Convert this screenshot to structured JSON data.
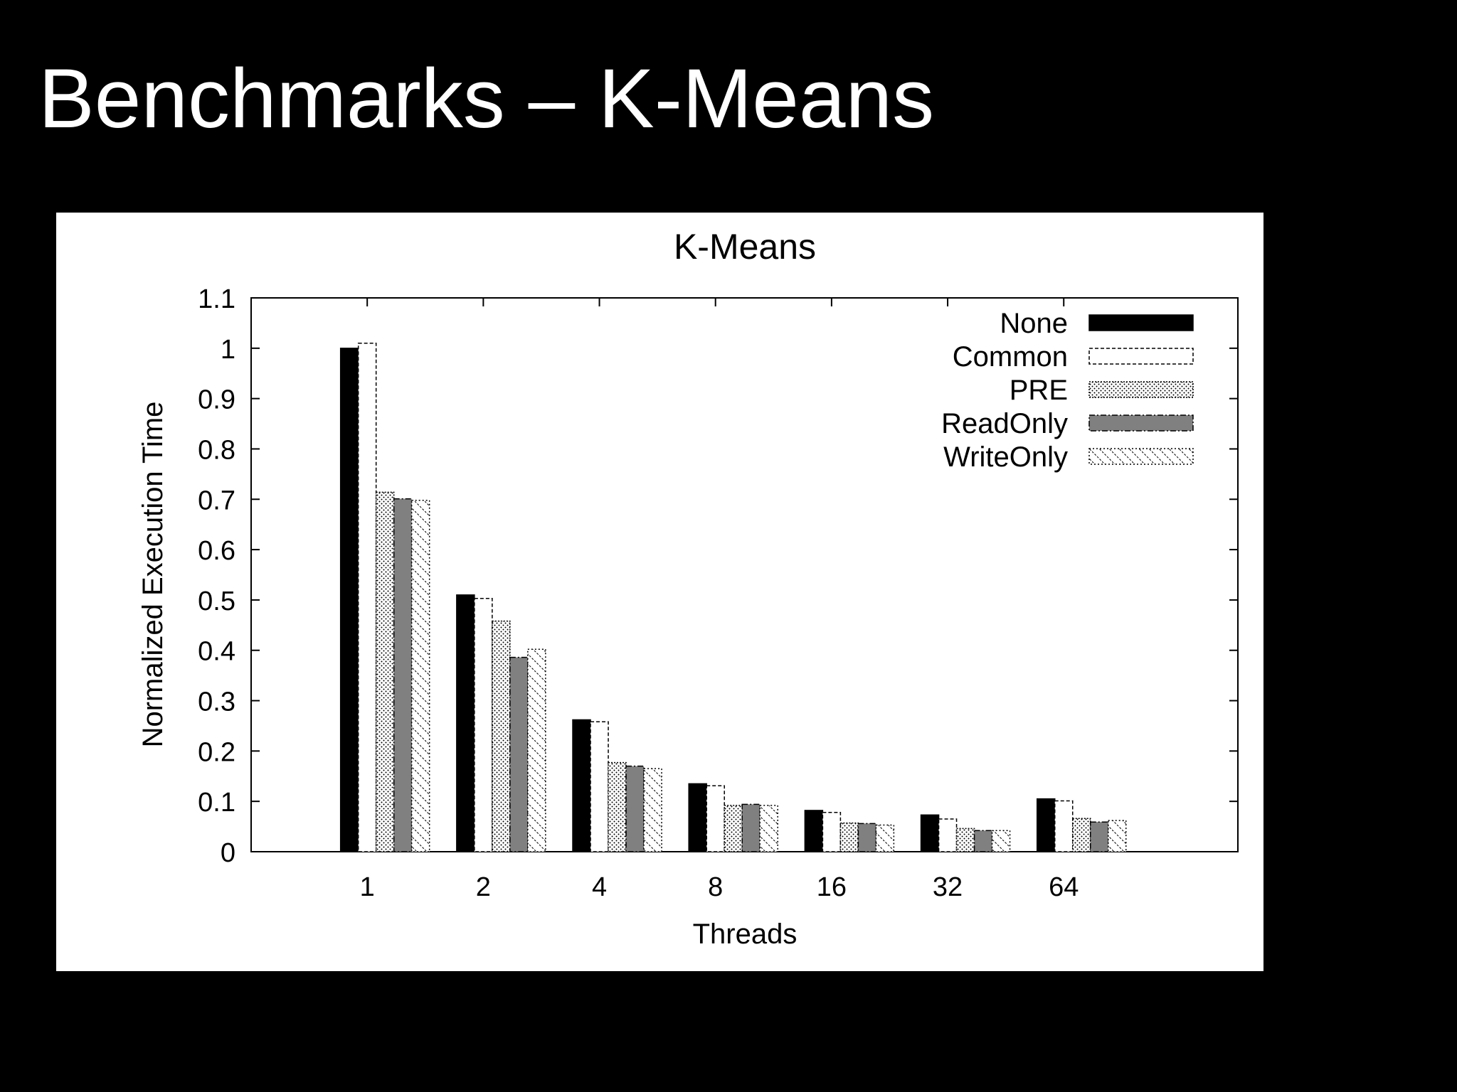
{
  "slide": {
    "title": "Benchmarks – K-Means"
  },
  "chart_data": {
    "type": "bar",
    "title": "K-Means",
    "xlabel": "Threads",
    "ylabel": "Normalized Execution Time",
    "categories": [
      "1",
      "2",
      "4",
      "8",
      "16",
      "32",
      "64"
    ],
    "ylim": [
      0,
      1.1
    ],
    "yticks": [
      "0",
      "0.1",
      "0.2",
      "0.3",
      "0.4",
      "0.5",
      "0.6",
      "0.7",
      "0.8",
      "0.9",
      "1",
      "1.1"
    ],
    "legend_position": "top-right",
    "grid": false,
    "series": [
      {
        "name": "None",
        "pattern": "solid-black",
        "values": [
          1.0,
          0.51,
          0.262,
          0.135,
          0.082,
          0.073,
          0.105
        ]
      },
      {
        "name": "Common",
        "pattern": "white-dashed",
        "values": [
          1.01,
          0.503,
          0.258,
          0.131,
          0.078,
          0.065,
          0.101
        ]
      },
      {
        "name": "PRE",
        "pattern": "dotted",
        "values": [
          0.714,
          0.458,
          0.177,
          0.092,
          0.057,
          0.046,
          0.066
        ]
      },
      {
        "name": "ReadOnly",
        "pattern": "gray",
        "values": [
          0.701,
          0.386,
          0.17,
          0.094,
          0.056,
          0.042,
          0.059
        ]
      },
      {
        "name": "WriteOnly",
        "pattern": "hatched",
        "values": [
          0.698,
          0.402,
          0.165,
          0.092,
          0.053,
          0.042,
          0.062
        ]
      }
    ]
  }
}
